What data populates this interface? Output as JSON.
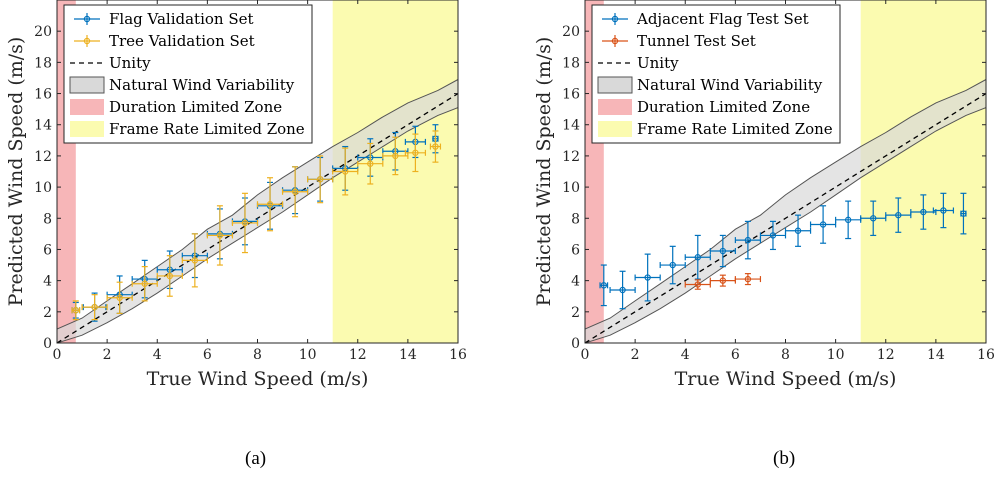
{
  "colors": {
    "blue": "#0072BD",
    "orange": "#D95319",
    "gold": "#EDB120",
    "band_fill": "#d9d9d9",
    "band_edge": "#555555",
    "red_zone": "#f7b6b8",
    "yellow_zone": "#fbfbb0"
  },
  "panels": [
    {
      "label": "(a)"
    },
    {
      "label": "(b)"
    }
  ],
  "chart_data": [
    {
      "type": "scatter",
      "xlabel": "True Wind Speed (m/s)",
      "ylabel": "Predicted Wind Speed (m/s)",
      "xlim": [
        0,
        16
      ],
      "ylim": [
        0,
        22
      ],
      "xticks": [
        0,
        2,
        4,
        6,
        8,
        10,
        12,
        14,
        16
      ],
      "yticks": [
        0,
        2,
        4,
        6,
        8,
        10,
        12,
        14,
        16,
        18,
        20
      ],
      "grid": false,
      "legend_position": "top-left",
      "legend": [
        "Flag Validation Set",
        "Tree Validation Set",
        "Unity",
        "Natural Wind Variability",
        "Duration Limited Zone",
        "Frame Rate Limited Zone"
      ],
      "zones": {
        "duration_limited_x": [
          0,
          0.75
        ],
        "frame_rate_limited_x": [
          11,
          16
        ]
      },
      "unity": {
        "x": [
          0,
          16
        ],
        "y": [
          0,
          16
        ]
      },
      "band": {
        "x": [
          0,
          1,
          2,
          3,
          4,
          5,
          6,
          7,
          8,
          9,
          10,
          11,
          12,
          13,
          14,
          15.2,
          16
        ],
        "upper": [
          0.9,
          1.6,
          2.7,
          3.8,
          4.9,
          6.0,
          7.3,
          8.2,
          9.5,
          10.6,
          11.6,
          12.6,
          13.5,
          14.5,
          15.4,
          16.2,
          16.9
        ],
        "lower": [
          0.0,
          0.5,
          1.3,
          2.2,
          3.2,
          4.3,
          5.4,
          6.4,
          7.4,
          8.4,
          9.5,
          10.6,
          11.6,
          12.6,
          13.6,
          14.6,
          15.1
        ]
      },
      "series": [
        {
          "name": "Flag Validation Set",
          "color": "#0072BD",
          "x": [
            0.75,
            1.5,
            2.5,
            3.5,
            4.5,
            5.5,
            6.5,
            7.5,
            8.5,
            9.5,
            10.5,
            11.5,
            12.5,
            13.5,
            14.3,
            15.1
          ],
          "y": [
            2.1,
            2.3,
            3.1,
            4.1,
            4.7,
            5.6,
            7.0,
            7.8,
            8.8,
            9.8,
            10.5,
            11.2,
            11.9,
            12.3,
            12.9,
            13.1
          ],
          "yerr": [
            0.5,
            0.9,
            1.2,
            1.2,
            1.2,
            1.4,
            1.6,
            1.5,
            1.5,
            1.5,
            1.4,
            1.4,
            1.2,
            1.2,
            1.0,
            0.9
          ],
          "xerr": [
            0.15,
            0.45,
            0.5,
            0.5,
            0.5,
            0.5,
            0.5,
            0.5,
            0.5,
            0.5,
            0.5,
            0.5,
            0.5,
            0.5,
            0.4,
            0.1
          ]
        },
        {
          "name": "Tree Validation Set",
          "color": "#EDB120",
          "x": [
            0.75,
            1.5,
            2.5,
            3.5,
            4.5,
            5.5,
            6.5,
            7.5,
            8.5,
            9.5,
            10.5,
            11.5,
            12.5,
            13.5,
            14.3,
            15.1
          ],
          "y": [
            2.1,
            2.3,
            2.9,
            3.8,
            4.3,
            5.3,
            6.9,
            7.7,
            8.9,
            9.7,
            10.5,
            11.0,
            11.5,
            12.0,
            12.2,
            12.6
          ],
          "yerr": [
            0.6,
            0.8,
            1.0,
            1.1,
            1.3,
            1.7,
            1.9,
            1.9,
            1.7,
            1.6,
            1.5,
            1.5,
            1.3,
            1.2,
            1.2,
            1.0
          ],
          "xerr": [
            0.15,
            0.5,
            0.5,
            0.5,
            0.5,
            0.5,
            0.5,
            0.5,
            0.5,
            0.5,
            0.5,
            0.5,
            0.5,
            0.5,
            0.4,
            0.2
          ]
        }
      ]
    },
    {
      "type": "scatter",
      "xlabel": "True Wind Speed (m/s)",
      "ylabel": "Predicted Wind Speed (m/s)",
      "xlim": [
        0,
        16
      ],
      "ylim": [
        0,
        22
      ],
      "xticks": [
        0,
        2,
        4,
        6,
        8,
        10,
        12,
        14,
        16
      ],
      "yticks": [
        0,
        2,
        4,
        6,
        8,
        10,
        12,
        14,
        16,
        18,
        20
      ],
      "grid": false,
      "legend_position": "top-left",
      "legend": [
        "Adjacent Flag Test Set",
        "Tunnel Test Set",
        "Unity",
        "Natural Wind Variability",
        "Duration Limited Zone",
        "Frame Rate Limited Zone"
      ],
      "zones": {
        "duration_limited_x": [
          0,
          0.75
        ],
        "frame_rate_limited_x": [
          11,
          16
        ]
      },
      "unity": {
        "x": [
          0,
          16
        ],
        "y": [
          0,
          16
        ]
      },
      "band": {
        "x": [
          0,
          1,
          2,
          3,
          4,
          5,
          6,
          7,
          8,
          9,
          10,
          11,
          12,
          13,
          14,
          15.2,
          16
        ],
        "upper": [
          0.9,
          1.6,
          2.7,
          3.8,
          4.9,
          6.0,
          7.3,
          8.2,
          9.5,
          10.6,
          11.6,
          12.6,
          13.5,
          14.5,
          15.4,
          16.2,
          16.9
        ],
        "lower": [
          0.0,
          0.5,
          1.3,
          2.2,
          3.2,
          4.3,
          5.4,
          6.4,
          7.4,
          8.4,
          9.5,
          10.6,
          11.6,
          12.6,
          13.6,
          14.6,
          15.1
        ]
      },
      "series": [
        {
          "name": "Adjacent Flag Test Set",
          "color": "#0072BD",
          "x": [
            0.75,
            1.5,
            2.5,
            3.5,
            4.5,
            5.5,
            6.5,
            7.5,
            8.5,
            9.5,
            10.5,
            11.5,
            12.5,
            13.5,
            14.3,
            15.1
          ],
          "y": [
            3.7,
            3.4,
            4.2,
            5.0,
            5.5,
            5.9,
            6.6,
            6.9,
            7.2,
            7.6,
            7.9,
            8.0,
            8.2,
            8.4,
            8.5,
            8.3
          ],
          "yerr": [
            1.3,
            1.2,
            1.5,
            1.2,
            1.4,
            1.0,
            1.2,
            0.9,
            1.0,
            1.2,
            1.2,
            1.1,
            1.1,
            1.1,
            1.1,
            1.3
          ],
          "xerr": [
            0.15,
            0.5,
            0.5,
            0.5,
            0.5,
            0.5,
            0.5,
            0.5,
            0.5,
            0.5,
            0.5,
            0.5,
            0.5,
            0.5,
            0.4,
            0.1
          ]
        },
        {
          "name": "Tunnel Test Set",
          "color": "#D95319",
          "x": [
            4.5,
            5.5,
            6.5
          ],
          "y": [
            3.75,
            4.0,
            4.1
          ],
          "yerr": [
            0.3,
            0.35,
            0.35
          ],
          "xerr": [
            0.5,
            0.5,
            0.5
          ]
        }
      ]
    }
  ]
}
